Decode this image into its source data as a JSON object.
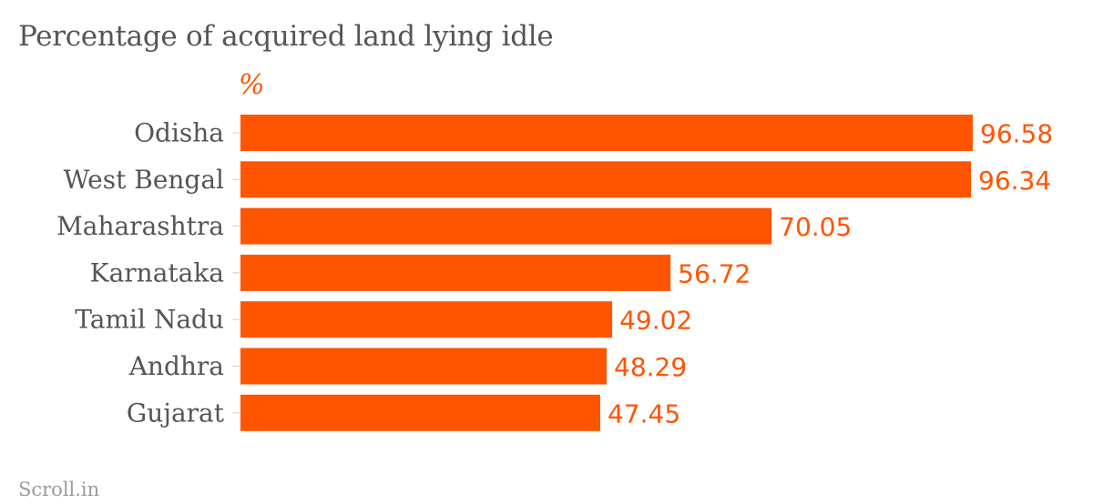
{
  "title": "Percentage of acquired land lying idle",
  "unit_label": "%",
  "source": "Scroll.in",
  "colors": {
    "bar": "#ff5500",
    "value_text": "#ff5500",
    "category_text": "#555555",
    "tick": "#cccccc"
  },
  "chart_data": {
    "type": "bar",
    "orientation": "horizontal",
    "categories": [
      "Odisha",
      "West Bengal",
      "Maharashtra",
      "Karnataka",
      "Tamil Nadu",
      "Andhra",
      "Gujarat"
    ],
    "values": [
      96.58,
      96.34,
      70.05,
      56.72,
      49.02,
      48.29,
      47.45
    ],
    "value_labels": [
      "96.58",
      "96.34",
      "70.05",
      "56.72",
      "49.02",
      "48.29",
      "47.45"
    ],
    "title": "Percentage of acquired land lying idle",
    "xlabel": "",
    "ylabel": "",
    "unit": "%",
    "xlim": [
      0,
      100
    ],
    "grid": false,
    "legend": "none"
  }
}
